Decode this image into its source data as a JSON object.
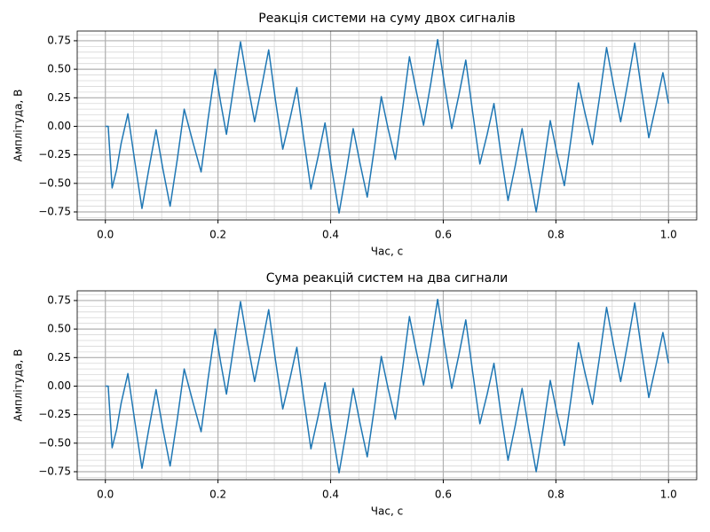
{
  "chart_data": [
    {
      "type": "line",
      "title": "Реакція системи на суму двох сигналів",
      "xlabel": "Час, с",
      "ylabel": "Амплітуда, В",
      "xlim": [
        -0.05,
        1.05
      ],
      "ylim": [
        -0.82,
        0.835
      ],
      "xticks": [
        {
          "value": 0,
          "label": "0.0"
        },
        {
          "value": 0.2,
          "label": "0.2"
        },
        {
          "value": 0.4,
          "label": "0.4"
        },
        {
          "value": 0.6,
          "label": "0.6"
        },
        {
          "value": 0.8,
          "label": "0.8"
        },
        {
          "value": 1,
          "label": "1.0"
        }
      ],
      "yticks": [
        0.75,
        {
          "value": 0.5,
          "label": "0.50"
        },
        0.25,
        {
          "value": 0,
          "label": "0.00"
        },
        {
          "value": -0.25,
          "label": "−0.25"
        },
        {
          "value": -0.5,
          "label": "−0.50"
        },
        {
          "value": -0.75,
          "label": "−0.75"
        }
      ],
      "grid": true,
      "minor_grid": true,
      "x": [
        0,
        0.005,
        0.012,
        0.02,
        0.028,
        0.04,
        0.052,
        0.065,
        0.077,
        0.09,
        0.102,
        0.115,
        0.128,
        0.14,
        0.156,
        0.17,
        0.182,
        0.195,
        0.205,
        0.215,
        0.228,
        0.24,
        0.252,
        0.265,
        0.278,
        0.29,
        0.302,
        0.315,
        0.328,
        0.34,
        0.352,
        0.365,
        0.378,
        0.39,
        0.402,
        0.415,
        0.428,
        0.44,
        0.452,
        0.465,
        0.478,
        0.49,
        0.502,
        0.515,
        0.528,
        0.54,
        0.552,
        0.565,
        0.578,
        0.59,
        0.602,
        0.615,
        0.628,
        0.64,
        0.652,
        0.665,
        0.678,
        0.69,
        0.702,
        0.715,
        0.728,
        0.74,
        0.752,
        0.765,
        0.778,
        0.79,
        0.802,
        0.815,
        0.828,
        0.84,
        0.852,
        0.865,
        0.878,
        0.89,
        0.902,
        0.915,
        0.928,
        0.94,
        0.952,
        0.965,
        0.978,
        0.99,
        1.0
      ],
      "series": [
        {
          "color": "#1f77b4",
          "values": [
            0,
            0,
            -0.54,
            -0.38,
            -0.15,
            0.11,
            -0.3,
            -0.72,
            -0.38,
            -0.03,
            -0.37,
            -0.7,
            -0.28,
            0.15,
            -0.15,
            -0.4,
            0.05,
            0.5,
            0.2,
            -0.07,
            0.35,
            0.74,
            0.39,
            0.04,
            0.36,
            0.67,
            0.23,
            -0.2,
            0.07,
            0.34,
            -0.1,
            -0.55,
            -0.26,
            0.03,
            -0.37,
            -0.76,
            -0.39,
            -0.02,
            -0.32,
            -0.62,
            -0.18,
            0.26,
            -0.02,
            -0.29,
            0.16,
            0.61,
            0.31,
            0.01,
            0.38,
            0.76,
            0.37,
            -0.02,
            0.28,
            0.58,
            0.13,
            -0.33,
            -0.07,
            0.2,
            -0.23,
            -0.65,
            -0.34,
            -0.02,
            -0.39,
            -0.75,
            -0.35,
            0.05,
            -0.24,
            -0.52,
            -0.07,
            0.38,
            0.11,
            -0.16,
            0.27,
            0.69,
            0.37,
            0.04,
            0.39,
            0.73,
            0.32,
            -0.1,
            0.19,
            0.47,
            0.2
          ]
        }
      ]
    },
    {
      "type": "line",
      "title": "Сума реакцій систем на два сигнали",
      "xlabel": "Час, с",
      "ylabel": "Амплітуда, В",
      "xlim": [
        -0.05,
        1.05
      ],
      "ylim": [
        -0.82,
        0.835
      ],
      "xticks": [
        {
          "value": 0,
          "label": "0.0"
        },
        {
          "value": 0.2,
          "label": "0.2"
        },
        {
          "value": 0.4,
          "label": "0.4"
        },
        {
          "value": 0.6,
          "label": "0.6"
        },
        {
          "value": 0.8,
          "label": "0.8"
        },
        {
          "value": 1,
          "label": "1.0"
        }
      ],
      "yticks": [
        0.75,
        {
          "value": 0.5,
          "label": "0.50"
        },
        0.25,
        {
          "value": 0,
          "label": "0.00"
        },
        {
          "value": -0.25,
          "label": "−0.25"
        },
        {
          "value": -0.5,
          "label": "−0.50"
        },
        {
          "value": -0.75,
          "label": "−0.75"
        }
      ],
      "grid": true,
      "minor_grid": true,
      "x": [
        0,
        0.005,
        0.012,
        0.02,
        0.028,
        0.04,
        0.052,
        0.065,
        0.077,
        0.09,
        0.102,
        0.115,
        0.128,
        0.14,
        0.156,
        0.17,
        0.182,
        0.195,
        0.205,
        0.215,
        0.228,
        0.24,
        0.252,
        0.265,
        0.278,
        0.29,
        0.302,
        0.315,
        0.328,
        0.34,
        0.352,
        0.365,
        0.378,
        0.39,
        0.402,
        0.415,
        0.428,
        0.44,
        0.452,
        0.465,
        0.478,
        0.49,
        0.502,
        0.515,
        0.528,
        0.54,
        0.552,
        0.565,
        0.578,
        0.59,
        0.602,
        0.615,
        0.628,
        0.64,
        0.652,
        0.665,
        0.678,
        0.69,
        0.702,
        0.715,
        0.728,
        0.74,
        0.752,
        0.765,
        0.778,
        0.79,
        0.802,
        0.815,
        0.828,
        0.84,
        0.852,
        0.865,
        0.878,
        0.89,
        0.902,
        0.915,
        0.928,
        0.94,
        0.952,
        0.965,
        0.978,
        0.99,
        1.0
      ],
      "series": [
        {
          "color": "#1f77b4",
          "values": [
            0,
            0,
            -0.54,
            -0.38,
            -0.15,
            0.11,
            -0.3,
            -0.72,
            -0.38,
            -0.03,
            -0.37,
            -0.7,
            -0.28,
            0.15,
            -0.15,
            -0.4,
            0.05,
            0.5,
            0.2,
            -0.07,
            0.35,
            0.74,
            0.39,
            0.04,
            0.36,
            0.67,
            0.23,
            -0.2,
            0.07,
            0.34,
            -0.1,
            -0.55,
            -0.26,
            0.03,
            -0.37,
            -0.76,
            -0.39,
            -0.02,
            -0.32,
            -0.62,
            -0.18,
            0.26,
            -0.02,
            -0.29,
            0.16,
            0.61,
            0.31,
            0.01,
            0.38,
            0.76,
            0.37,
            -0.02,
            0.28,
            0.58,
            0.13,
            -0.33,
            -0.07,
            0.2,
            -0.23,
            -0.65,
            -0.34,
            -0.02,
            -0.39,
            -0.75,
            -0.35,
            0.05,
            -0.24,
            -0.52,
            -0.07,
            0.38,
            0.11,
            -0.16,
            0.27,
            0.69,
            0.37,
            0.04,
            0.39,
            0.73,
            0.32,
            -0.1,
            0.19,
            0.47,
            0.2
          ]
        }
      ]
    }
  ]
}
